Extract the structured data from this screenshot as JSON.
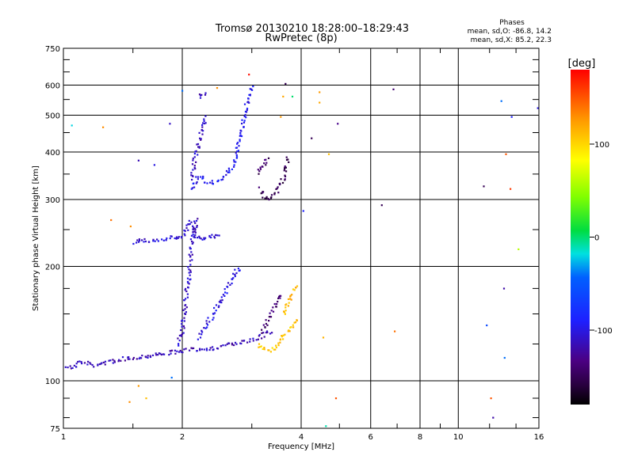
{
  "chart_data": {
    "type": "scatter",
    "title": "Tromsø 20130210 18:28:00–18:29:43",
    "subtitle": "RwPretec (8p)",
    "xlabel": "Frequency [MHz]",
    "ylabel": "Stationary phase Virtual Height [km]",
    "x_scale": "log",
    "y_scale": "log",
    "xlim": [
      1,
      16
    ],
    "ylim": [
      75,
      750
    ],
    "x_ticks": [
      1,
      2,
      4,
      6,
      8,
      10,
      16
    ],
    "x_tick_labels": [
      "1",
      "2",
      "4",
      "6",
      "8",
      "10",
      "16"
    ],
    "y_ticks": [
      75,
      100,
      200,
      300,
      400,
      500,
      600,
      750
    ],
    "y_tick_labels": [
      "75",
      "100",
      "200",
      "300",
      "400",
      "500",
      "600",
      "750"
    ],
    "grid": true,
    "phases_box": {
      "title": "Phases",
      "line_o": "mean, sd,O: -86.8, 14.2",
      "line_x": "mean, sd,X:  85.2, 22.3"
    },
    "colorbar": {
      "label": "[deg]",
      "range": [
        -180,
        180
      ],
      "ticks": [
        100,
        0,
        -100
      ],
      "tick_labels": [
        "100",
        "0",
        "-100"
      ]
    },
    "trace_color_scale": "phase in degrees",
    "traces": [
      {
        "phase": -115,
        "points": [
          [
            1.0,
            110
          ],
          [
            1.05,
            108
          ],
          [
            1.1,
            112
          ],
          [
            1.2,
            110
          ],
          [
            1.3,
            112
          ],
          [
            1.4,
            114
          ],
          [
            1.5,
            115
          ],
          [
            1.6,
            116
          ],
          [
            1.7,
            117
          ],
          [
            1.8,
            118
          ],
          [
            1.9,
            119
          ],
          [
            2.0,
            120
          ],
          [
            2.2,
            121
          ],
          [
            2.4,
            122
          ],
          [
            2.6,
            124
          ],
          [
            2.8,
            126
          ],
          [
            3.0,
            128
          ],
          [
            3.2,
            132
          ],
          [
            3.4,
            135
          ]
        ]
      },
      {
        "phase": -105,
        "points": [
          [
            1.5,
            232
          ],
          [
            1.6,
            234
          ],
          [
            1.7,
            235
          ],
          [
            1.8,
            236
          ],
          [
            1.9,
            238
          ],
          [
            2.0,
            240
          ],
          [
            2.05,
            250
          ],
          [
            2.1,
            262
          ],
          [
            2.15,
            240
          ],
          [
            2.2,
            238
          ],
          [
            2.3,
            238
          ],
          [
            2.4,
            240
          ],
          [
            2.5,
            242
          ]
        ]
      },
      {
        "phase": -110,
        "points": [
          [
            1.95,
            125
          ],
          [
            2.0,
            135
          ],
          [
            2.02,
            150
          ],
          [
            2.05,
            170
          ],
          [
            2.08,
            190
          ],
          [
            2.1,
            210
          ],
          [
            2.12,
            230
          ],
          [
            2.15,
            250
          ],
          [
            2.17,
            270
          ]
        ]
      },
      {
        "phase": -100,
        "points": [
          [
            2.2,
            130
          ],
          [
            2.3,
            140
          ],
          [
            2.4,
            150
          ],
          [
            2.5,
            162
          ],
          [
            2.6,
            175
          ],
          [
            2.7,
            190
          ],
          [
            2.8,
            200
          ]
        ]
      },
      {
        "phase": -95,
        "points": [
          [
            2.1,
            320
          ],
          [
            2.15,
            330
          ],
          [
            2.2,
            345
          ],
          [
            2.3,
            335
          ],
          [
            2.4,
            332
          ],
          [
            2.5,
            340
          ],
          [
            2.6,
            350
          ],
          [
            2.7,
            370
          ],
          [
            2.75,
            400
          ],
          [
            2.8,
            440
          ],
          [
            2.85,
            480
          ],
          [
            2.9,
            520
          ],
          [
            2.95,
            560
          ],
          [
            3.0,
            600
          ]
        ]
      },
      {
        "phase": -112,
        "points": [
          [
            2.1,
            340
          ],
          [
            2.15,
            380
          ],
          [
            2.2,
            420
          ],
          [
            2.25,
            460
          ],
          [
            2.3,
            500
          ]
        ]
      },
      {
        "phase": -115,
        "points": [
          [
            2.2,
            560
          ],
          [
            2.25,
            570
          ],
          [
            2.3,
            575
          ]
        ]
      },
      {
        "phase": -150,
        "points": [
          [
            3.15,
            320
          ],
          [
            3.2,
            305
          ],
          [
            3.3,
            300
          ],
          [
            3.4,
            305
          ],
          [
            3.5,
            320
          ],
          [
            3.6,
            340
          ],
          [
            3.65,
            360
          ],
          [
            3.7,
            390
          ]
        ]
      },
      {
        "phase": -145,
        "points": [
          [
            3.1,
            350
          ],
          [
            3.2,
            370
          ],
          [
            3.3,
            390
          ]
        ]
      },
      {
        "phase": -140,
        "points": [
          [
            3.2,
            135
          ],
          [
            3.3,
            145
          ],
          [
            3.4,
            155
          ],
          [
            3.5,
            165
          ],
          [
            3.6,
            170
          ]
        ]
      },
      {
        "phase": 105,
        "points": [
          [
            3.1,
            125
          ],
          [
            3.2,
            122
          ],
          [
            3.3,
            120
          ],
          [
            3.4,
            122
          ],
          [
            3.5,
            125
          ],
          [
            3.6,
            130
          ],
          [
            3.7,
            135
          ],
          [
            3.8,
            140
          ],
          [
            3.9,
            145
          ]
        ]
      },
      {
        "phase": 115,
        "points": [
          [
            3.6,
            150
          ],
          [
            3.7,
            160
          ],
          [
            3.8,
            170
          ],
          [
            3.9,
            180
          ]
        ]
      }
    ],
    "scattered_points": [
      {
        "x": 1.32,
        "y": 265,
        "phase": 140
      },
      {
        "x": 1.48,
        "y": 255,
        "phase": 130
      },
      {
        "x": 1.26,
        "y": 465,
        "phase": 130
      },
      {
        "x": 1.55,
        "y": 97,
        "phase": 125
      },
      {
        "x": 1.47,
        "y": 88,
        "phase": 130
      },
      {
        "x": 1.62,
        "y": 90,
        "phase": 110
      },
      {
        "x": 1.88,
        "y": 102,
        "phase": -40
      },
      {
        "x": 1.86,
        "y": 475,
        "phase": -110
      },
      {
        "x": 1.7,
        "y": 370,
        "phase": -100
      },
      {
        "x": 1.55,
        "y": 380,
        "phase": -115
      },
      {
        "x": 1.05,
        "y": 470,
        "phase": -20
      },
      {
        "x": 2.45,
        "y": 590,
        "phase": 130
      },
      {
        "x": 2.95,
        "y": 640,
        "phase": 175
      },
      {
        "x": 3.65,
        "y": 605,
        "phase": -150
      },
      {
        "x": 3.55,
        "y": 495,
        "phase": 125
      },
      {
        "x": 3.6,
        "y": 560,
        "phase": 120
      },
      {
        "x": 3.8,
        "y": 560,
        "phase": 0
      },
      {
        "x": 4.05,
        "y": 280,
        "phase": -90
      },
      {
        "x": 4.45,
        "y": 575,
        "phase": 125
      },
      {
        "x": 4.45,
        "y": 540,
        "phase": 120
      },
      {
        "x": 4.55,
        "y": 130,
        "phase": 115
      },
      {
        "x": 4.25,
        "y": 435,
        "phase": -150
      },
      {
        "x": 4.95,
        "y": 475,
        "phase": -130
      },
      {
        "x": 4.9,
        "y": 90,
        "phase": 150
      },
      {
        "x": 4.62,
        "y": 76,
        "phase": -10
      },
      {
        "x": 4.7,
        "y": 395,
        "phase": 110
      },
      {
        "x": 6.4,
        "y": 290,
        "phase": -150
      },
      {
        "x": 6.85,
        "y": 585,
        "phase": -140
      },
      {
        "x": 6.9,
        "y": 135,
        "phase": 140
      },
      {
        "x": 11.6,
        "y": 325,
        "phase": -150
      },
      {
        "x": 12.25,
        "y": 80,
        "phase": -120
      },
      {
        "x": 12.1,
        "y": 90,
        "phase": 150
      },
      {
        "x": 11.8,
        "y": 140,
        "phase": -60
      },
      {
        "x": 12.85,
        "y": 545,
        "phase": -40
      },
      {
        "x": 13.2,
        "y": 395,
        "phase": 150
      },
      {
        "x": 13.55,
        "y": 320,
        "phase": 160
      },
      {
        "x": 13.65,
        "y": 495,
        "phase": -90
      },
      {
        "x": 13.05,
        "y": 175,
        "phase": -120
      },
      {
        "x": 13.1,
        "y": 115,
        "phase": -40
      },
      {
        "x": 14.2,
        "y": 222,
        "phase": 60
      },
      {
        "x": 15.9,
        "y": 522,
        "phase": -100
      },
      {
        "x": 2.0,
        "y": 580,
        "phase": -40
      }
    ]
  }
}
